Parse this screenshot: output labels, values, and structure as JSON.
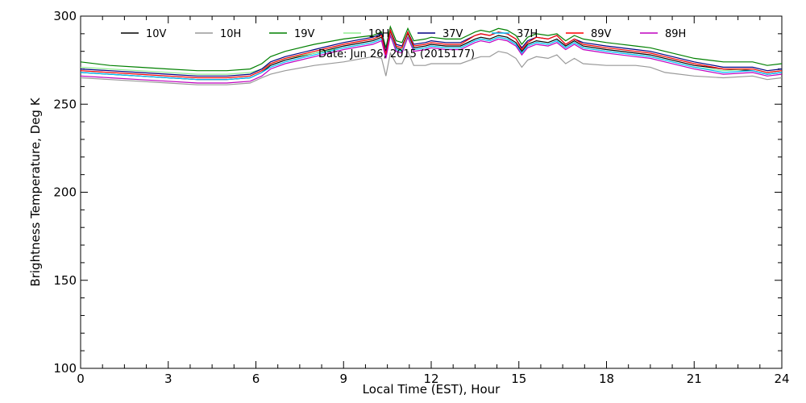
{
  "chart_data": {
    "type": "line",
    "title": "",
    "xlabel": "Local Time (EST), Hour",
    "ylabel": "Brightness Temperature, Deg K",
    "xlim": [
      0,
      24
    ],
    "ylim": [
      100,
      300
    ],
    "xticks": [
      0,
      3,
      6,
      9,
      12,
      15,
      18,
      21,
      24
    ],
    "yticks": [
      100,
      150,
      200,
      250,
      300
    ],
    "grid": false,
    "legend_position": "top",
    "annotation": "Date: Jun 26, 2015 (2015177)",
    "x": [
      0,
      1,
      2,
      3,
      4,
      5,
      5.8,
      6.2,
      6.5,
      7,
      8,
      9,
      10,
      10.3,
      10.45,
      10.6,
      10.8,
      11,
      11.2,
      11.4,
      11.8,
      12,
      12.5,
      13,
      13.5,
      13.7,
      14,
      14.3,
      14.6,
      14.9,
      15.1,
      15.3,
      15.6,
      16,
      16.3,
      16.6,
      16.9,
      17.2,
      18,
      19,
      19.5,
      20,
      21,
      22,
      23,
      23.5,
      24
    ],
    "series": [
      {
        "name": "10V",
        "color": "#000000",
        "values": [
          268,
          267,
          266,
          265,
          264,
          264,
          265,
          268,
          272,
          275,
          279,
          283,
          286,
          288,
          277,
          291,
          282,
          281,
          290,
          282,
          283,
          284,
          283,
          283,
          287,
          288,
          287,
          289,
          288,
          285,
          280,
          284,
          286,
          285,
          287,
          283,
          286,
          283,
          281,
          279,
          278,
          276,
          272,
          270,
          269,
          267,
          268
        ]
      },
      {
        "name": "10H",
        "color": "#999999",
        "values": [
          265,
          264,
          263,
          262,
          261,
          261,
          262,
          265,
          267,
          269,
          272,
          274,
          277,
          276,
          266,
          279,
          273,
          273,
          280,
          272,
          272,
          273,
          273,
          273,
          276,
          277,
          277,
          280,
          279,
          276,
          271,
          275,
          277,
          276,
          278,
          273,
          276,
          273,
          272,
          272,
          271,
          268,
          266,
          265,
          266,
          264,
          265
        ]
      },
      {
        "name": "19V",
        "color": "#008000",
        "values": [
          274,
          272,
          271,
          270,
          269,
          269,
          270,
          273,
          277,
          280,
          284,
          287,
          289,
          291,
          282,
          294,
          286,
          285,
          293,
          286,
          287,
          288,
          287,
          287,
          291,
          292,
          291,
          293,
          292,
          289,
          284,
          288,
          290,
          289,
          290,
          286,
          289,
          287,
          285,
          283,
          282,
          280,
          276,
          274,
          274,
          272,
          273
        ]
      },
      {
        "name": "19H",
        "color": "#90ee90",
        "values": [
          271,
          270,
          269,
          268,
          267,
          267,
          268,
          270,
          273,
          276,
          279,
          282,
          285,
          287,
          278,
          290,
          281,
          281,
          289,
          281,
          282,
          283,
          282,
          282,
          286,
          287,
          286,
          288,
          287,
          284,
          279,
          283,
          285,
          284,
          286,
          282,
          285,
          282,
          280,
          278,
          277,
          275,
          271,
          269,
          270,
          268,
          269
        ]
      },
      {
        "name": "37V",
        "color": "#000080",
        "values": [
          270,
          269,
          268,
          267,
          266,
          266,
          267,
          270,
          274,
          277,
          281,
          285,
          288,
          290,
          280,
          292,
          284,
          283,
          291,
          284,
          285,
          286,
          285,
          285,
          289,
          290,
          289,
          291,
          290,
          287,
          282,
          286,
          288,
          287,
          289,
          284,
          287,
          285,
          283,
          281,
          280,
          278,
          274,
          271,
          271,
          269,
          270
        ]
      },
      {
        "name": "37H",
        "color": "#00bfff",
        "values": [
          268,
          267,
          266,
          265,
          264,
          264,
          265,
          268,
          271,
          274,
          278,
          282,
          285,
          287,
          277,
          289,
          281,
          280,
          288,
          281,
          282,
          283,
          282,
          282,
          286,
          287,
          286,
          288,
          287,
          284,
          279,
          283,
          285,
          284,
          286,
          282,
          285,
          282,
          280,
          278,
          277,
          275,
          271,
          268,
          269,
          267,
          268
        ]
      },
      {
        "name": "89V",
        "color": "#ff0000",
        "values": [
          269,
          268,
          267,
          266,
          265,
          265,
          266,
          269,
          273,
          276,
          280,
          284,
          287,
          289,
          278,
          292,
          283,
          282,
          291,
          283,
          284,
          285,
          284,
          284,
          289,
          290,
          289,
          291,
          290,
          287,
          281,
          285,
          288,
          287,
          289,
          284,
          287,
          284,
          282,
          280,
          279,
          277,
          273,
          270,
          270,
          268,
          269
        ]
      },
      {
        "name": "89H",
        "color": "#bf00bf",
        "values": [
          266,
          265,
          264,
          263,
          262,
          262,
          263,
          266,
          270,
          273,
          277,
          281,
          284,
          286,
          276,
          289,
          280,
          279,
          288,
          280,
          281,
          282,
          281,
          281,
          285,
          286,
          285,
          287,
          286,
          283,
          278,
          282,
          284,
          283,
          285,
          281,
          284,
          281,
          279,
          277,
          276,
          274,
          270,
          267,
          268,
          266,
          267
        ]
      }
    ]
  }
}
